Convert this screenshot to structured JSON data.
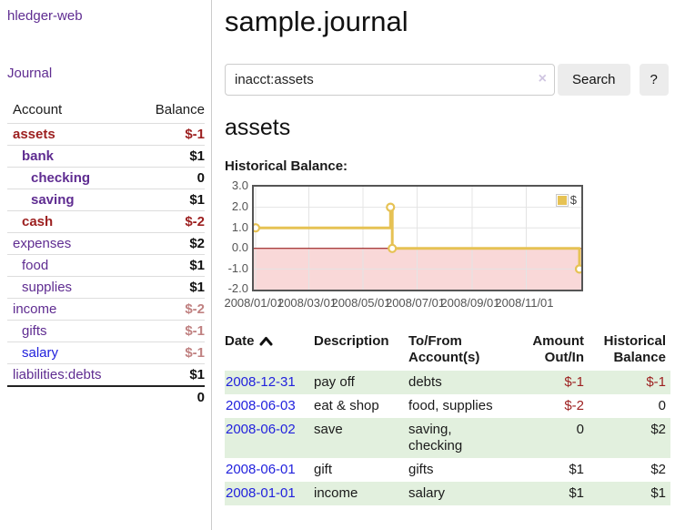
{
  "colors": {
    "purple": "#5f2c91",
    "blue-link": "#2222dd",
    "dark-red": "#9c1f1f",
    "rose": "#c08181",
    "green-row": "#e2f0de",
    "gold": "#e6c254",
    "pink": "#f9d8d8",
    "zero-red": "#8b0000",
    "grid": "#e4e4e4",
    "chart-border": "#555555",
    "border-gray": "#cccccc",
    "btn-bg": "#ececec",
    "lavender": "#cfc5e1",
    "tick": "#545454"
  },
  "sidebar": {
    "app_title": "hledger-web",
    "journal_link": "Journal",
    "accounts": {
      "col_account": "Account",
      "col_balance": "Balance",
      "rows": [
        {
          "name": "assets",
          "depth": 1,
          "balance": "$-1",
          "name_style": "bold-negative",
          "balance_style": "bold-negative"
        },
        {
          "name": "bank",
          "depth": 2,
          "balance": "$1",
          "name_style": "bold-purple",
          "balance_style": "bold-dark"
        },
        {
          "name": "checking",
          "depth": 3,
          "balance": "0",
          "name_style": "bold-purple",
          "balance_style": "bold-dark"
        },
        {
          "name": "saving",
          "depth": 3,
          "balance": "$1",
          "name_style": "bold-purple",
          "balance_style": "bold-dark"
        },
        {
          "name": "cash",
          "depth": 2,
          "balance": "$-2",
          "name_style": "bold-negative",
          "balance_style": "bold-negative"
        },
        {
          "name": "expenses",
          "depth": 1,
          "balance": "$2",
          "name_style": "purple",
          "balance_style": "bold-dark"
        },
        {
          "name": "food",
          "depth": 2,
          "balance": "$1",
          "name_style": "purple",
          "balance_style": "bold-dark"
        },
        {
          "name": "supplies",
          "depth": 2,
          "balance": "$1",
          "name_style": "purple",
          "balance_style": "bold-dark"
        },
        {
          "name": "income",
          "depth": 1,
          "balance": "$-2",
          "name_style": "purple",
          "balance_style": "muted-negative"
        },
        {
          "name": "gifts",
          "depth": 2,
          "balance": "$-1",
          "name_style": "purple",
          "balance_style": "muted-negative"
        },
        {
          "name": "salary",
          "depth": 2,
          "balance": "$-1",
          "name_style": "blue",
          "balance_style": "muted-negative"
        },
        {
          "name": "liabilities:debts",
          "depth": 1,
          "balance": "$1",
          "name_style": "purple",
          "balance_style": "bold-dark"
        }
      ],
      "total": "0"
    }
  },
  "main": {
    "title": "sample.journal",
    "search": {
      "value": "inacct:assets",
      "clear_label": "×",
      "button_label": "Search",
      "help_label": "?"
    },
    "heading": "assets",
    "chart_heading": "Historical Balance:"
  },
  "chart_data": {
    "type": "line",
    "step": true,
    "title": "Historical Balance",
    "series": [
      {
        "name": "$",
        "points": [
          [
            "2008-01-01",
            1.0
          ],
          [
            "2008-06-01",
            2.0
          ],
          [
            "2008-06-03",
            0.0
          ],
          [
            "2008-12-31",
            -1.0
          ]
        ]
      }
    ],
    "ylim": [
      -2.0,
      3.0
    ],
    "yticks": [
      3.0,
      2.0,
      1.0,
      0.0,
      -1.0,
      -2.0
    ],
    "xtick_labels": [
      "2008/01/01",
      "2008/03/01",
      "2008/05/01",
      "2008/07/01",
      "2008/09/01",
      "2008/11/01"
    ],
    "x_range": [
      "2008-01-01",
      "2008-12-31"
    ],
    "grid": true,
    "negative_region_shaded": true,
    "legend": {
      "label": "$",
      "position": "top-right"
    }
  },
  "register": {
    "headers": {
      "date": "Date",
      "description": "Description",
      "accounts": "To/From Account(s)",
      "amount": "Amount Out/In",
      "balance": "Historical Balance"
    },
    "rows": [
      {
        "date": "2008-12-31",
        "description": "pay off",
        "accounts": "debts",
        "amount": "$-1",
        "balance": "$-1"
      },
      {
        "date": "2008-06-03",
        "description": "eat & shop",
        "accounts": "food, supplies",
        "amount": "$-2",
        "balance": "0"
      },
      {
        "date": "2008-06-02",
        "description": "save",
        "accounts": "saving, checking",
        "amount": "0",
        "balance": "$2"
      },
      {
        "date": "2008-06-01",
        "description": "gift",
        "accounts": "gifts",
        "amount": "$1",
        "balance": "$2"
      },
      {
        "date": "2008-01-01",
        "description": "income",
        "accounts": "salary",
        "amount": "$1",
        "balance": "$1"
      }
    ]
  }
}
